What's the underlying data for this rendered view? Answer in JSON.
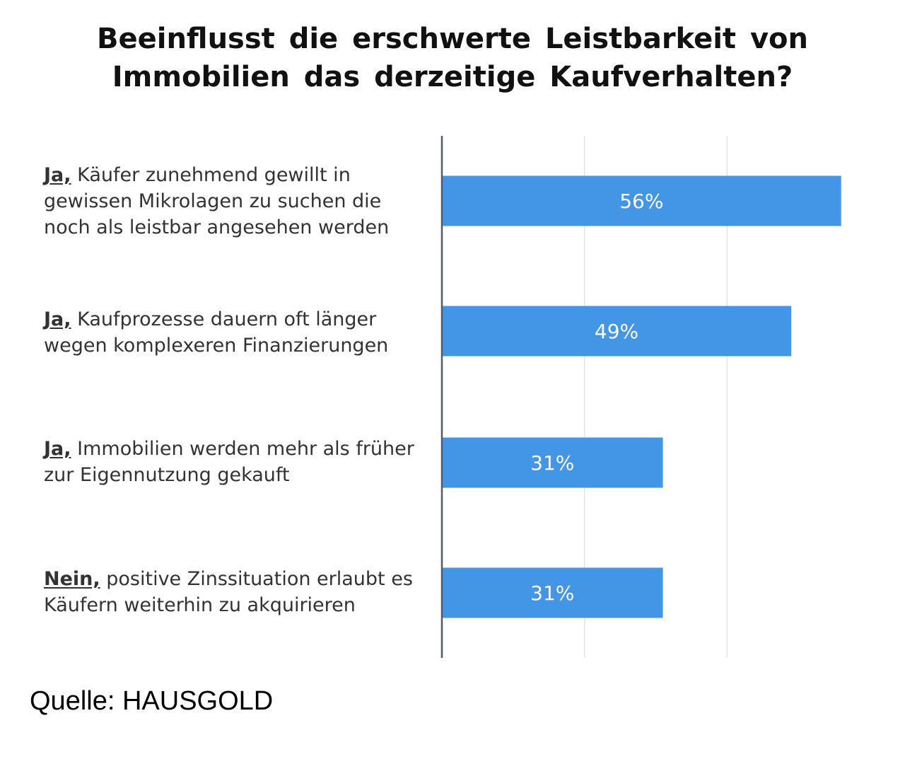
{
  "title_lines": [
    "Beeinflusst die erschwerte Leistbarkeit von",
    "Immobilien das derzeitige Kaufverhalten?"
  ],
  "source": "Quelle: HAUSGOLD",
  "colors": {
    "bar": "#4396e6",
    "bar_text": "#ffffff",
    "axis": "#55596a",
    "grid": "#e3e3e3"
  },
  "chart_data": {
    "type": "bar",
    "orientation": "horizontal",
    "categories": [
      {
        "lead": "Ja,",
        "text": "Käufer zunehmend gewillt in gewissen Mikrolagen zu suchen die noch als leistbar angesehen werden"
      },
      {
        "lead": "Ja,",
        "text": "Kaufprozesse dauern oft länger wegen komplexeren Finanzierungen"
      },
      {
        "lead": "Ja,",
        "text": "Immobilien werden mehr als früher zur Eigennutzung gekauft"
      },
      {
        "lead": "Nein,",
        "text": "positive Zinssituation erlaubt es Käufern weiterhin zu akquirieren"
      }
    ],
    "values": [
      56,
      49,
      31,
      31
    ],
    "data_labels": [
      "56%",
      "49%",
      "31%",
      "31%"
    ],
    "unit": "%",
    "xlim": [
      0,
      60
    ],
    "grid": true
  }
}
